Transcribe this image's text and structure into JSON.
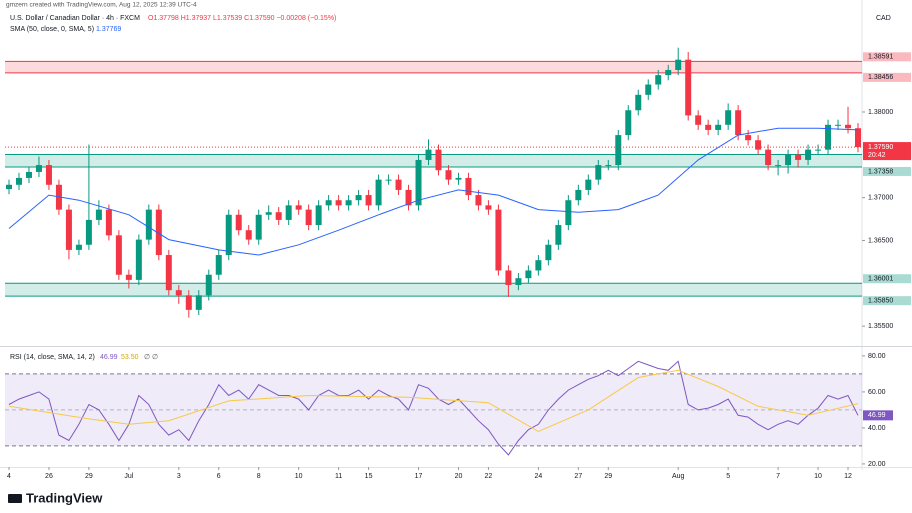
{
  "header": {
    "attribution": "gmzern created with TradingView.com, Aug 12, 2025 12:39 UTC-4",
    "symbol": "U.S. Dollar / Canadian Dollar · 4h · FXCM",
    "ohlc": "O1.37798 H1.37937 L1.37539 C1.37590 −0.00208 (−0.15%)",
    "currency": "CAD",
    "logo": "TradingView"
  },
  "chart_data": [
    {
      "type": "candlestick",
      "up_color": "#089981",
      "down_color": "#f23645",
      "xlim": [
        -0.4,
        85.4
      ],
      "ylim": [
        1.3528,
        1.3919
      ],
      "yticks": [
        {
          "value": 1.355,
          "label": "1.35500"
        },
        {
          "value": 1.365,
          "label": "1.36500"
        },
        {
          "value": 1.37,
          "label": "1.37000"
        },
        {
          "value": 1.38,
          "label": "1.38000"
        }
      ],
      "xticks": [
        {
          "value": 0,
          "label": "4"
        },
        {
          "value": 4,
          "label": "26"
        },
        {
          "value": 8,
          "label": "29"
        },
        {
          "value": 12,
          "label": "Jul"
        },
        {
          "value": 17,
          "label": "3"
        },
        {
          "value": 21,
          "label": "6"
        },
        {
          "value": 25,
          "label": "8"
        },
        {
          "value": 29,
          "label": "10"
        },
        {
          "value": 33,
          "label": "11"
        },
        {
          "value": 36,
          "label": "15"
        },
        {
          "value": 41,
          "label": "17"
        },
        {
          "value": 45,
          "label": "20"
        },
        {
          "value": 48,
          "label": "22"
        },
        {
          "value": 53,
          "label": "24"
        },
        {
          "value": 57,
          "label": "27"
        },
        {
          "value": 60,
          "label": "29"
        },
        {
          "value": 67,
          "label": "Aug"
        },
        {
          "value": 72,
          "label": "5"
        },
        {
          "value": 77,
          "label": "7"
        },
        {
          "value": 81,
          "label": "10"
        },
        {
          "value": 84,
          "label": "12"
        }
      ],
      "open": [
        1.371,
        1.3715,
        1.3723,
        1.373,
        1.3738,
        1.3715,
        1.3686,
        1.3639,
        1.3645,
        1.3674,
        1.3686,
        1.3656,
        1.361,
        1.3604,
        1.3651,
        1.3686,
        1.3633,
        1.3592,
        1.3586,
        1.3569,
        1.3586,
        1.361,
        1.3633,
        1.368,
        1.3662,
        1.3651,
        1.368,
        1.3683,
        1.3674,
        1.3691,
        1.3686,
        1.3668,
        1.3691,
        1.3697,
        1.3691,
        1.3697,
        1.3703,
        1.3691,
        1.3721,
        1.3721,
        1.3709,
        1.3691,
        1.3744,
        1.3756,
        1.3732,
        1.3721,
        1.3723,
        1.3703,
        1.3691,
        1.3686,
        1.3615,
        1.3598,
        1.3606,
        1.3615,
        1.3627,
        1.3645,
        1.3668,
        1.3697,
        1.3709,
        1.3721,
        1.3738,
        1.3738,
        1.3773,
        1.3802,
        1.382,
        1.3832,
        1.3843,
        1.3849,
        1.3861,
        1.3796,
        1.3785,
        1.3779,
        1.3785,
        1.3802,
        1.3773,
        1.3767,
        1.3756,
        1.3738,
        1.3738,
        1.375,
        1.3744,
        1.3756,
        1.3756,
        1.3785,
        1.3785,
        1.3781
      ],
      "high": [
        1.3721,
        1.3729,
        1.3736,
        1.3748,
        1.3744,
        1.3721,
        1.3692,
        1.3651,
        1.3762,
        1.3697,
        1.3692,
        1.3662,
        1.3616,
        1.3657,
        1.3692,
        1.3692,
        1.3639,
        1.3598,
        1.3592,
        1.3592,
        1.3616,
        1.3639,
        1.3686,
        1.3686,
        1.3668,
        1.3686,
        1.3691,
        1.3689,
        1.3697,
        1.3697,
        1.3692,
        1.3697,
        1.3703,
        1.3703,
        1.3703,
        1.3709,
        1.3709,
        1.3727,
        1.3727,
        1.3727,
        1.3715,
        1.375,
        1.3768,
        1.3762,
        1.3738,
        1.3729,
        1.3729,
        1.3709,
        1.3697,
        1.3692,
        1.3621,
        1.3612,
        1.3621,
        1.3633,
        1.3651,
        1.3674,
        1.3703,
        1.3715,
        1.3727,
        1.3744,
        1.3744,
        1.3779,
        1.3808,
        1.3826,
        1.3838,
        1.3849,
        1.3855,
        1.3875,
        1.387,
        1.3802,
        1.3791,
        1.3791,
        1.381,
        1.3808,
        1.3779,
        1.3773,
        1.3762,
        1.3744,
        1.3756,
        1.3756,
        1.3762,
        1.3762,
        1.3791,
        1.3791,
        1.3806,
        1.3787
      ],
      "low": [
        1.3704,
        1.3709,
        1.3717,
        1.3724,
        1.3709,
        1.368,
        1.3628,
        1.3633,
        1.3639,
        1.3668,
        1.365,
        1.3604,
        1.3594,
        1.3598,
        1.3645,
        1.3627,
        1.3586,
        1.3576,
        1.356,
        1.3563,
        1.358,
        1.3604,
        1.3627,
        1.3656,
        1.3645,
        1.3645,
        1.3674,
        1.3668,
        1.3668,
        1.368,
        1.3662,
        1.3662,
        1.3685,
        1.3685,
        1.3685,
        1.3691,
        1.3685,
        1.3685,
        1.3715,
        1.3703,
        1.3685,
        1.3685,
        1.3738,
        1.3726,
        1.3715,
        1.3715,
        1.3697,
        1.3685,
        1.368,
        1.3609,
        1.3584,
        1.3592,
        1.36,
        1.3609,
        1.3621,
        1.3639,
        1.3662,
        1.3691,
        1.3703,
        1.3715,
        1.3732,
        1.3732,
        1.3767,
        1.3796,
        1.3814,
        1.3826,
        1.3837,
        1.3843,
        1.379,
        1.3779,
        1.3773,
        1.3773,
        1.3779,
        1.3767,
        1.3761,
        1.375,
        1.3732,
        1.3726,
        1.3728,
        1.3735,
        1.3738,
        1.375,
        1.375,
        1.3779,
        1.3775,
        1.3753
      ],
      "close": [
        1.3715,
        1.3723,
        1.373,
        1.3738,
        1.3715,
        1.3686,
        1.3639,
        1.3645,
        1.3674,
        1.3686,
        1.3656,
        1.361,
        1.3604,
        1.3651,
        1.3686,
        1.3633,
        1.3592,
        1.3586,
        1.3569,
        1.3586,
        1.361,
        1.3633,
        1.368,
        1.3662,
        1.3651,
        1.368,
        1.3683,
        1.3674,
        1.3691,
        1.3686,
        1.3668,
        1.3691,
        1.3697,
        1.3691,
        1.3697,
        1.3703,
        1.3691,
        1.3721,
        1.3721,
        1.3709,
        1.3691,
        1.3744,
        1.3756,
        1.3732,
        1.3721,
        1.3723,
        1.3703,
        1.3691,
        1.3686,
        1.3615,
        1.3598,
        1.3606,
        1.3615,
        1.3627,
        1.3645,
        1.3668,
        1.3697,
        1.3709,
        1.3721,
        1.3738,
        1.3738,
        1.3773,
        1.3802,
        1.382,
        1.3832,
        1.3843,
        1.3849,
        1.3861,
        1.3796,
        1.3785,
        1.3779,
        1.3785,
        1.3802,
        1.3773,
        1.3767,
        1.3756,
        1.3738,
        1.3738,
        1.375,
        1.3744,
        1.3756,
        1.3756,
        1.3785,
        1.3785,
        1.3781,
        1.3759
      ],
      "sma": {
        "name": "SMA (50, close, 0, SMA, 5)",
        "last": 1.37769,
        "color": "#2962ff",
        "x": [
          0,
          4,
          7,
          12,
          16,
          21,
          25,
          29,
          33,
          37,
          41,
          45,
          49,
          53,
          57,
          61,
          65,
          69,
          73,
          77,
          81,
          85
        ],
        "values": [
          1.3664,
          1.3703,
          1.3697,
          1.368,
          1.3651,
          1.3639,
          1.3633,
          1.3645,
          1.3662,
          1.368,
          1.3697,
          1.3709,
          1.3703,
          1.3686,
          1.3683,
          1.3686,
          1.3703,
          1.3744,
          1.3773,
          1.3781,
          1.3781,
          1.3779
        ]
      },
      "zones": [
        {
          "color": "#f23645",
          "bounds": [
            1.38591,
            1.38456
          ]
        },
        {
          "color": "#089981",
          "bounds": [
            1.37504,
            1.37358
          ]
        },
        {
          "color": "#089981",
          "bounds": [
            1.36001,
            {
              "value": 1.3585,
              "label": "1.35850"
            }
          ]
        }
      ],
      "last_price": {
        "value": 1.3759,
        "label": "1.37590"
      },
      "countdown": "20:42"
    },
    {
      "type": "line",
      "title": "RSI (14, close, SMA, 14, 2)",
      "empty_values": "∅ ∅",
      "xlim": [
        -0.4,
        85.4
      ],
      "ylim": [
        19.4,
        84.4
      ],
      "yticks": [
        {
          "value": 80,
          "label": "80.00"
        },
        {
          "value": 60,
          "label": "60.00"
        },
        {
          "value": 40,
          "label": "40.00"
        },
        {
          "value": 20,
          "label": "20.00"
        }
      ],
      "band": [
        30,
        70
      ],
      "midline": 50,
      "band_color": "#7e57c2",
      "series": [
        {
          "color": "#7e57c2",
          "last": 46.99,
          "values": [
            53,
            56,
            58,
            60,
            56,
            36,
            33,
            42,
            53,
            50,
            42,
            33,
            42,
            58,
            53,
            42,
            36,
            39,
            33,
            44,
            53,
            64,
            58,
            61,
            56,
            64,
            61,
            58,
            58,
            56,
            50,
            58,
            61,
            58,
            58,
            61,
            56,
            61,
            58,
            56,
            50,
            64,
            62,
            56,
            53,
            56,
            50,
            44,
            39,
            31,
            25,
            33,
            39,
            42,
            50,
            56,
            61,
            64,
            67,
            69,
            72,
            69,
            73,
            77,
            75,
            73,
            72,
            77,
            53,
            50,
            51,
            53,
            56,
            47,
            46,
            42,
            39,
            42,
            44,
            42,
            47,
            51,
            58,
            56,
            58,
            46.99
          ]
        },
        {
          "color": "#f7c948",
          "last": {
            "value": 53.5,
            "label": "53.50"
          },
          "x": [
            0,
            8,
            12,
            16,
            22,
            30,
            40,
            48,
            53,
            58,
            63,
            67,
            71,
            75,
            80,
            85
          ],
          "values": [
            52,
            45,
            42,
            44,
            55,
            58,
            57,
            54,
            38,
            50,
            68,
            72,
            63,
            52,
            47,
            53.5
          ]
        }
      ]
    }
  ]
}
